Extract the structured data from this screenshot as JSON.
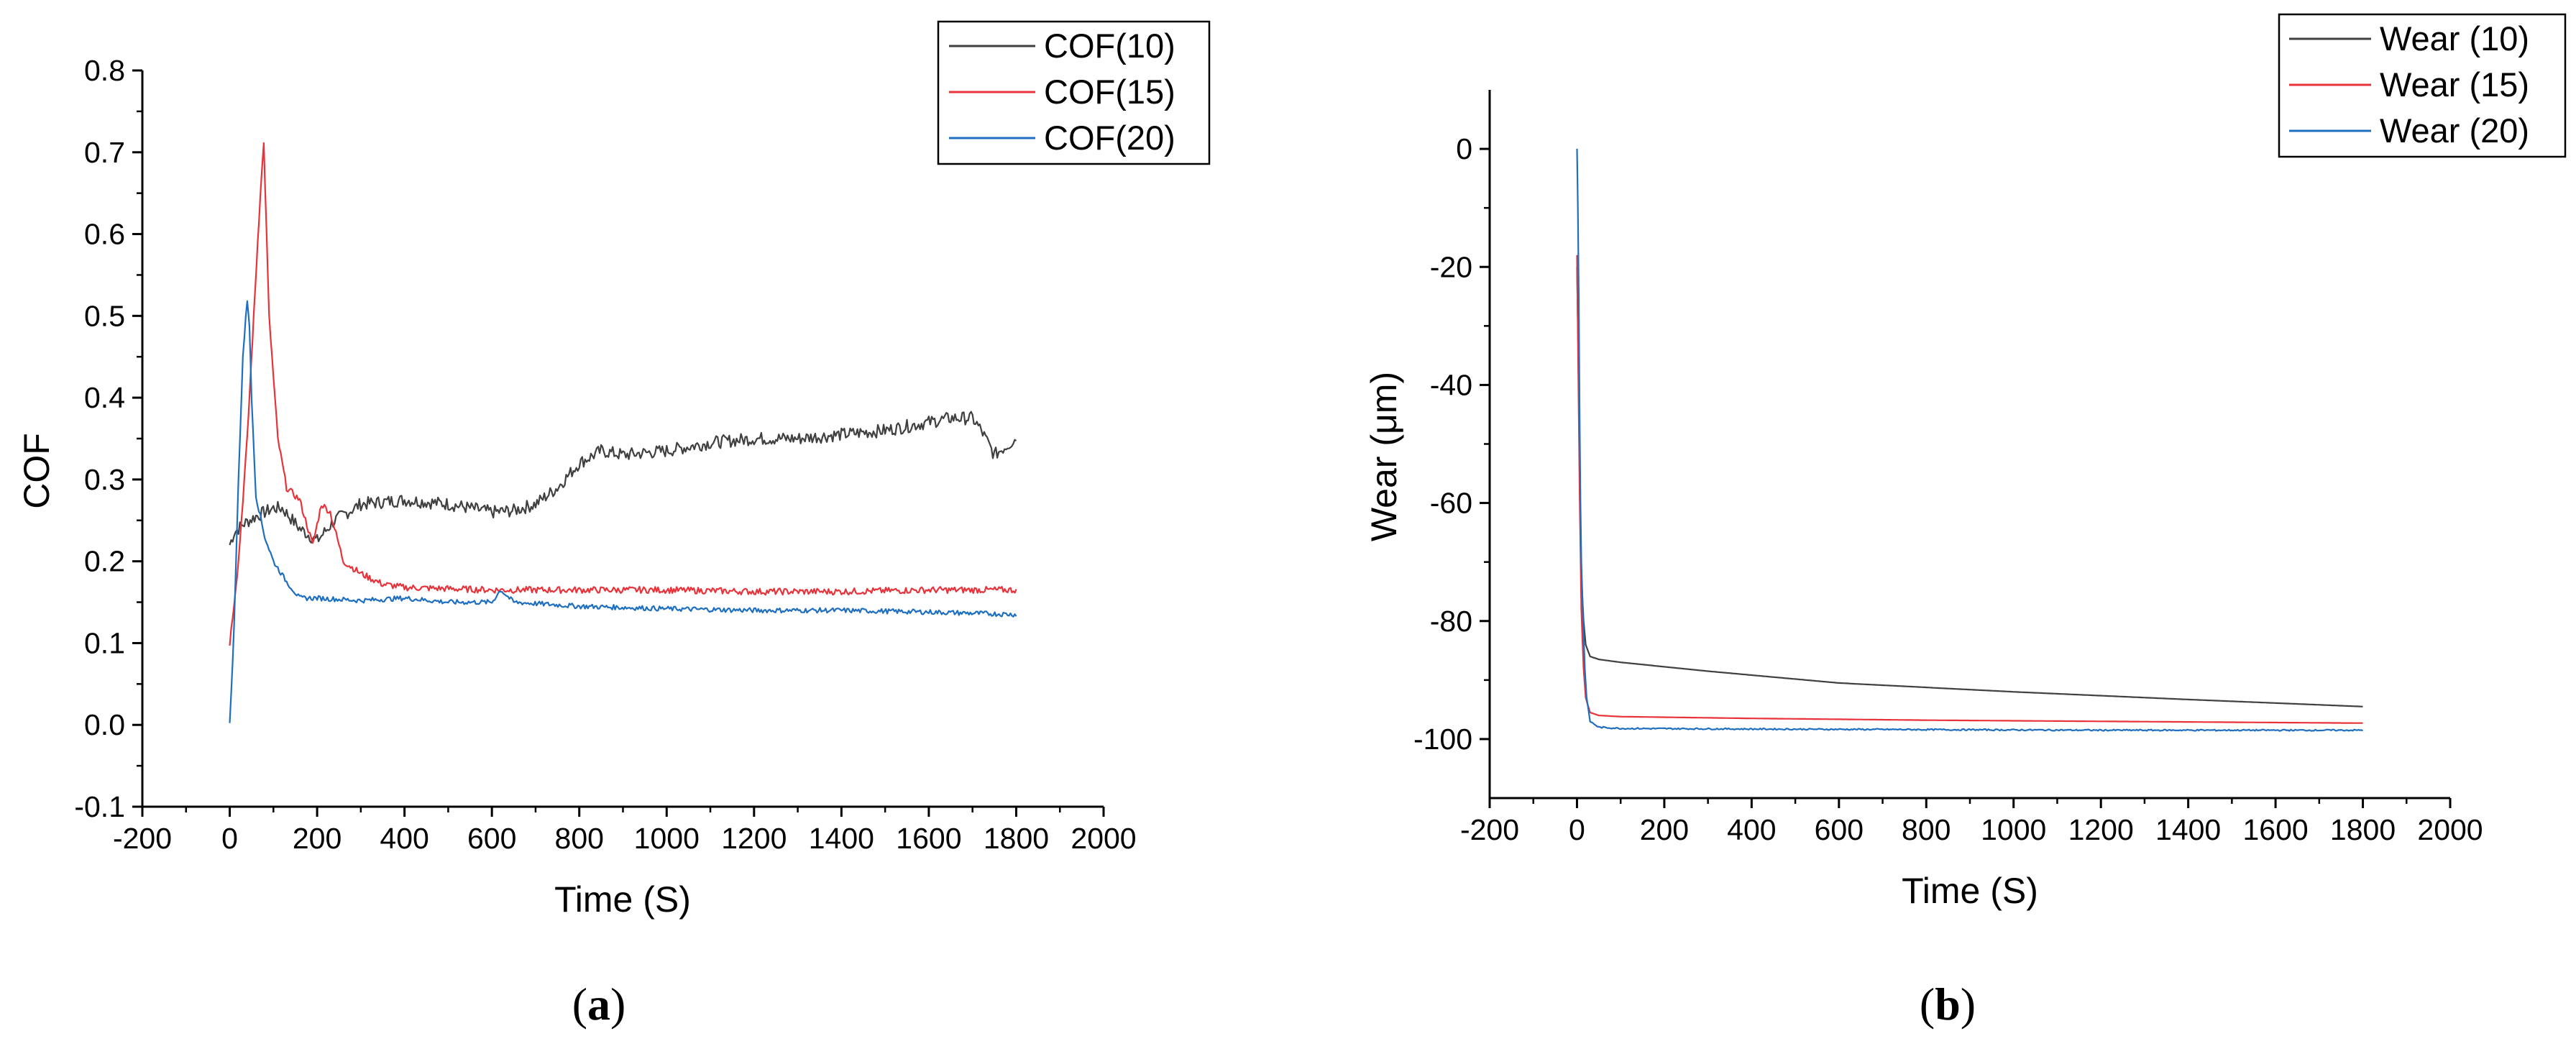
{
  "chart_data": [
    {
      "type": "line",
      "panel_label": "a",
      "xlabel": "Time (S)",
      "ylabel": "COF",
      "xlim": [
        -200,
        2000
      ],
      "ylim": [
        -0.1,
        0.8
      ],
      "xticks": [
        -200,
        0,
        200,
        400,
        600,
        800,
        1000,
        1200,
        1400,
        1600,
        1800,
        2000
      ],
      "xtick_labels": [
        "-200",
        "0",
        "200",
        "400",
        "600",
        "800",
        "1000",
        "1200",
        "1400",
        "1600",
        "1800",
        "2000"
      ],
      "yticks": [
        -0.1,
        0.0,
        0.1,
        0.2,
        0.3,
        0.4,
        0.5,
        0.6,
        0.7,
        0.8
      ],
      "ytick_labels": [
        "-0.1",
        "0.0",
        "0.1",
        "0.2",
        "0.3",
        "0.4",
        "0.5",
        "0.6",
        "0.7",
        "0.8"
      ],
      "legend_position": "top-right",
      "series": [
        {
          "name": "COF(10)",
          "color": "#404040",
          "noise": 0.008,
          "x": [
            0,
            10,
            30,
            60,
            100,
            120,
            160,
            200,
            240,
            300,
            400,
            500,
            600,
            650,
            700,
            750,
            800,
            850,
            900,
            1000,
            1100,
            1200,
            1300,
            1400,
            1500,
            1600,
            1650,
            1700,
            1720,
            1750,
            1800
          ],
          "y": [
            0.22,
            0.235,
            0.245,
            0.255,
            0.265,
            0.265,
            0.24,
            0.225,
            0.25,
            0.27,
            0.275,
            0.27,
            0.26,
            0.262,
            0.27,
            0.29,
            0.32,
            0.335,
            0.33,
            0.335,
            0.345,
            0.35,
            0.35,
            0.355,
            0.36,
            0.37,
            0.375,
            0.375,
            0.36,
            0.33,
            0.35
          ]
        },
        {
          "name": "COF(15)",
          "color": "#e8333b",
          "noise": 0.004,
          "x": [
            0,
            20,
            40,
            55,
            70,
            78,
            90,
            110,
            130,
            160,
            190,
            210,
            230,
            260,
            300,
            350,
            400,
            600,
            800,
            1000,
            1200,
            1400,
            1600,
            1800
          ],
          "y": [
            0.1,
            0.2,
            0.35,
            0.5,
            0.65,
            0.71,
            0.5,
            0.35,
            0.29,
            0.275,
            0.22,
            0.27,
            0.26,
            0.2,
            0.185,
            0.172,
            0.168,
            0.165,
            0.165,
            0.165,
            0.163,
            0.163,
            0.165,
            0.165
          ]
        },
        {
          "name": "COF(20)",
          "color": "#1f6fc1",
          "noise": 0.003,
          "x": [
            0,
            10,
            20,
            30,
            40,
            45,
            50,
            60,
            80,
            100,
            130,
            160,
            200,
            300,
            400,
            500,
            600,
            620,
            650,
            800,
            1000,
            1200,
            1400,
            1600,
            1800
          ],
          "y": [
            0.0,
            0.12,
            0.3,
            0.45,
            0.52,
            0.49,
            0.4,
            0.28,
            0.23,
            0.2,
            0.175,
            0.155,
            0.155,
            0.152,
            0.155,
            0.15,
            0.15,
            0.165,
            0.15,
            0.145,
            0.142,
            0.14,
            0.14,
            0.138,
            0.135
          ]
        }
      ]
    },
    {
      "type": "line",
      "panel_label": "b",
      "xlabel": "Time (S)",
      "ylabel": "Wear (μm)",
      "xlim": [
        -200,
        2000
      ],
      "ylim": [
        -110,
        10
      ],
      "xticks": [
        -200,
        0,
        200,
        400,
        600,
        800,
        1000,
        1200,
        1400,
        1600,
        1800,
        2000
      ],
      "xtick_labels": [
        "-200",
        "0",
        "200",
        "400",
        "600",
        "800",
        "1000",
        "1200",
        "1400",
        "1600",
        "1800",
        "2000"
      ],
      "yticks": [
        -100,
        -80,
        -60,
        -40,
        -20,
        0
      ],
      "ytick_labels": [
        "-100",
        "-80",
        "-60",
        "-40",
        "-20",
        "0"
      ],
      "legend_position": "top-right",
      "series": [
        {
          "name": "Wear (10)",
          "color": "#404040",
          "noise": 0,
          "x": [
            0,
            3,
            6,
            10,
            15,
            20,
            30,
            50,
            100,
            300,
            600,
            1000,
            1400,
            1800
          ],
          "y": [
            -20,
            -35,
            -55,
            -72,
            -80,
            -84,
            -86,
            -86.5,
            -87,
            -88.5,
            -90.5,
            -92,
            -93.3,
            -94.5
          ]
        },
        {
          "name": "Wear (15)",
          "color": "#e8333b",
          "noise": 0,
          "x": [
            0,
            3,
            6,
            10,
            15,
            20,
            30,
            50,
            100,
            400,
            800,
            1200,
            1800
          ],
          "y": [
            -18,
            -38,
            -58,
            -78,
            -88,
            -93,
            -95.5,
            -96,
            -96.2,
            -96.5,
            -96.8,
            -97,
            -97.3
          ]
        },
        {
          "name": "Wear (20)",
          "color": "#1f6fc1",
          "noise": 0.12,
          "x": [
            0,
            2,
            4,
            6,
            8,
            10,
            14,
            18,
            22,
            30,
            50,
            100,
            400,
            800,
            1200,
            1800
          ],
          "y": [
            0,
            -10,
            -25,
            -45,
            -60,
            -70,
            -80,
            -88,
            -93,
            -97,
            -98,
            -98.2,
            -98.3,
            -98.4,
            -98.5,
            -98.5
          ]
        }
      ]
    }
  ]
}
